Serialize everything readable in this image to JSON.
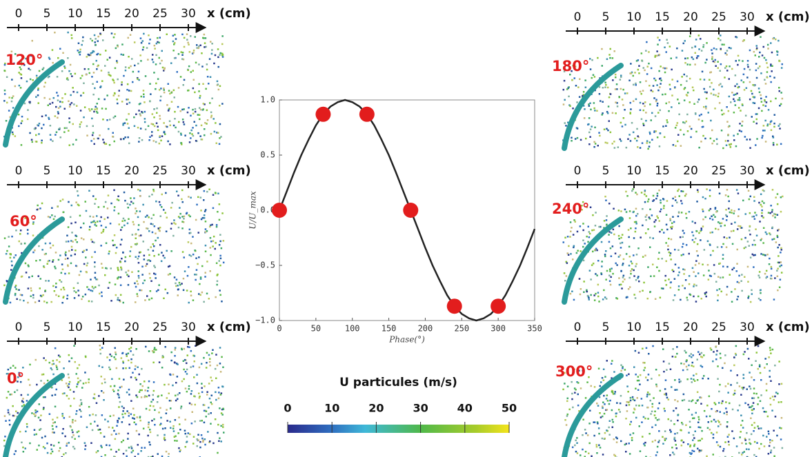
{
  "chart_data": {
    "type": "line",
    "xlabel": "Phase(°)",
    "ylabel": "U/U_max",
    "xlim": [
      0,
      350
    ],
    "ylim": [
      -1,
      1
    ],
    "xticks": [
      0,
      50,
      100,
      150,
      200,
      250,
      300,
      350
    ],
    "yticks": [
      {
        "value": -1,
        "label": "−1.0"
      },
      {
        "value": -0.5,
        "label": "−0.5"
      },
      {
        "value": 0,
        "label": "0.0"
      },
      0.5,
      {
        "value": 1,
        "label": "1.0"
      }
    ],
    "curve": {
      "color": "#222222",
      "x": [
        0,
        10,
        20,
        30,
        40,
        50,
        60,
        70,
        80,
        90,
        100,
        110,
        120,
        130,
        140,
        150,
        160,
        170,
        180,
        190,
        200,
        210,
        220,
        230,
        240,
        250,
        260,
        270,
        280,
        290,
        300,
        310,
        320,
        330,
        340,
        350
      ],
      "values": [
        0,
        0.17,
        0.34,
        0.5,
        0.64,
        0.77,
        0.87,
        0.94,
        0.98,
        1,
        0.98,
        0.94,
        0.87,
        0.77,
        0.64,
        0.5,
        0.34,
        0.17,
        0,
        -0.17,
        -0.34,
        -0.5,
        -0.64,
        -0.77,
        -0.87,
        -0.94,
        -0.98,
        -1,
        -0.98,
        -0.94,
        -0.87,
        -0.77,
        -0.64,
        -0.5,
        -0.34,
        -0.17
      ]
    },
    "points": {
      "color": "#e21d1d",
      "x": [
        0,
        60,
        120,
        180,
        240,
        300
      ],
      "values": [
        0,
        0.87,
        0.87,
        0,
        -0.87,
        -0.87
      ]
    }
  },
  "panels": [
    {
      "label": "120°",
      "axis_ticks": [
        0,
        5,
        10,
        15,
        20,
        25,
        30
      ],
      "axis_label": "x (cm)"
    },
    {
      "label": "60°",
      "axis_ticks": [
        0,
        5,
        10,
        15,
        20,
        25,
        30
      ],
      "axis_label": "x (cm)"
    },
    {
      "label": "0°",
      "axis_ticks": [
        0,
        5,
        10,
        15,
        20,
        25,
        30
      ],
      "axis_label": "x (cm)"
    },
    {
      "label": "180°",
      "axis_ticks": [
        0,
        5,
        10,
        15,
        20,
        25,
        30
      ],
      "axis_label": "x (cm)"
    },
    {
      "label": "240°",
      "axis_ticks": [
        0,
        5,
        10,
        15,
        20,
        25,
        30
      ],
      "axis_label": "x (cm)"
    },
    {
      "label": "300°",
      "axis_ticks": [
        0,
        5,
        10,
        15,
        20,
        25,
        30
      ],
      "axis_label": "x (cm)"
    }
  ],
  "colorbar": {
    "title": "U particules (m/s)",
    "lim": [
      0,
      50
    ],
    "ticks": [
      0,
      10,
      20,
      30,
      40,
      50
    ]
  }
}
